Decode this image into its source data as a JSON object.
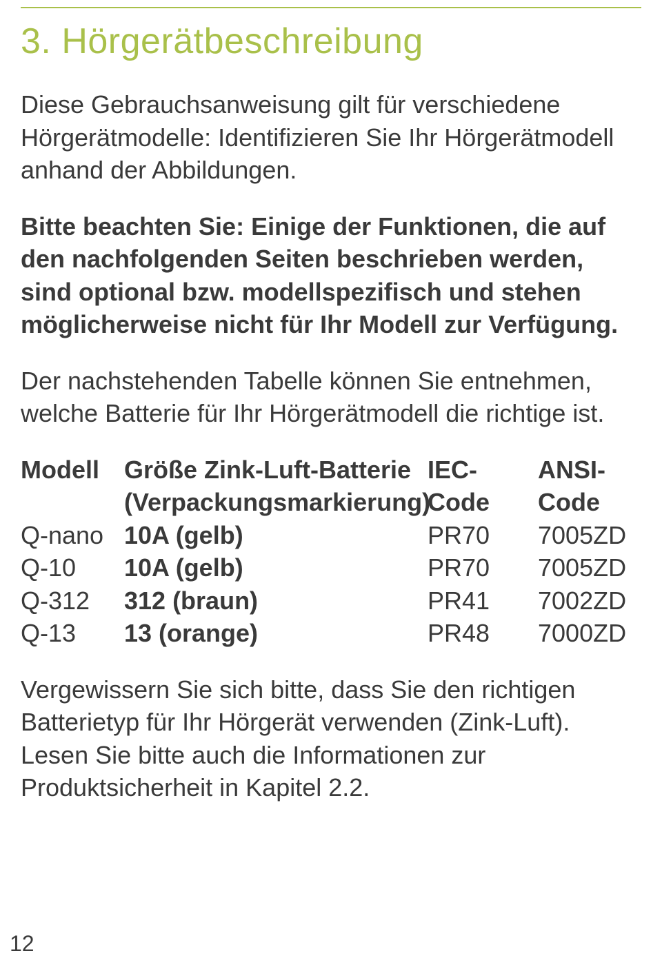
{
  "section": {
    "title": "3. Hörgerätbeschreibung"
  },
  "paragraphs": {
    "p1": "Diese Gebrauchsanweisung gilt für verschiedene Hörgerätmodelle: Identifizieren Sie Ihr Hörgerätmodell anhand der Abbildungen.",
    "p2_bold": "Bitte beachten Sie: Einige der Funktionen, die auf den nachfolgenden Seiten beschrieben werden, sind optional bzw. modellspezifisch und stehen möglicherweise nicht für Ihr Modell zur Verfügung.",
    "p3": "Der nachstehenden Tabelle können Sie entnehmen, welche Batterie für Ihr Hörgerätmodell die richtige ist.",
    "p4": "Vergewissern Sie sich bitte, dass Sie den richtigen Batterietyp für Ihr Hörgerät verwenden (Zink-Luft). Lesen Sie bitte auch die Informationen zur Produktsicherheit in Kapitel 2.2."
  },
  "table": {
    "header": {
      "model": "Modell",
      "size_line1": "Größe Zink-Luft-Batterie",
      "size_line2": "(Verpackungsmarkierung)",
      "iec_line1": "IEC-",
      "iec_line2": "Code",
      "ansi_line1": "ANSI-",
      "ansi_line2": "Code"
    },
    "rows": [
      {
        "model": "Q-nano",
        "size": "10A (gelb)",
        "iec": "PR70",
        "ansi": "7005ZD",
        "size_bold": true
      },
      {
        "model": "Q-10",
        "size": "10A (gelb)",
        "iec": "PR70",
        "ansi": "7005ZD",
        "size_bold": true
      },
      {
        "model": "Q-312",
        "size": "312 (braun)",
        "iec": "PR41",
        "ansi": "7002ZD",
        "size_bold": true
      },
      {
        "model": "Q-13",
        "size": "13 (orange)",
        "iec": "PR48",
        "ansi": "7000ZD",
        "size_bold": true
      }
    ]
  },
  "page_number": "12",
  "colors": {
    "accent": "#a9c04a",
    "text": "#3a3a3a",
    "background": "#ffffff"
  },
  "typography": {
    "title_pt": 52,
    "body_pt": 36,
    "line_height": 1.32,
    "font_family": "Helvetica Neue / Helvetica / Arial"
  }
}
